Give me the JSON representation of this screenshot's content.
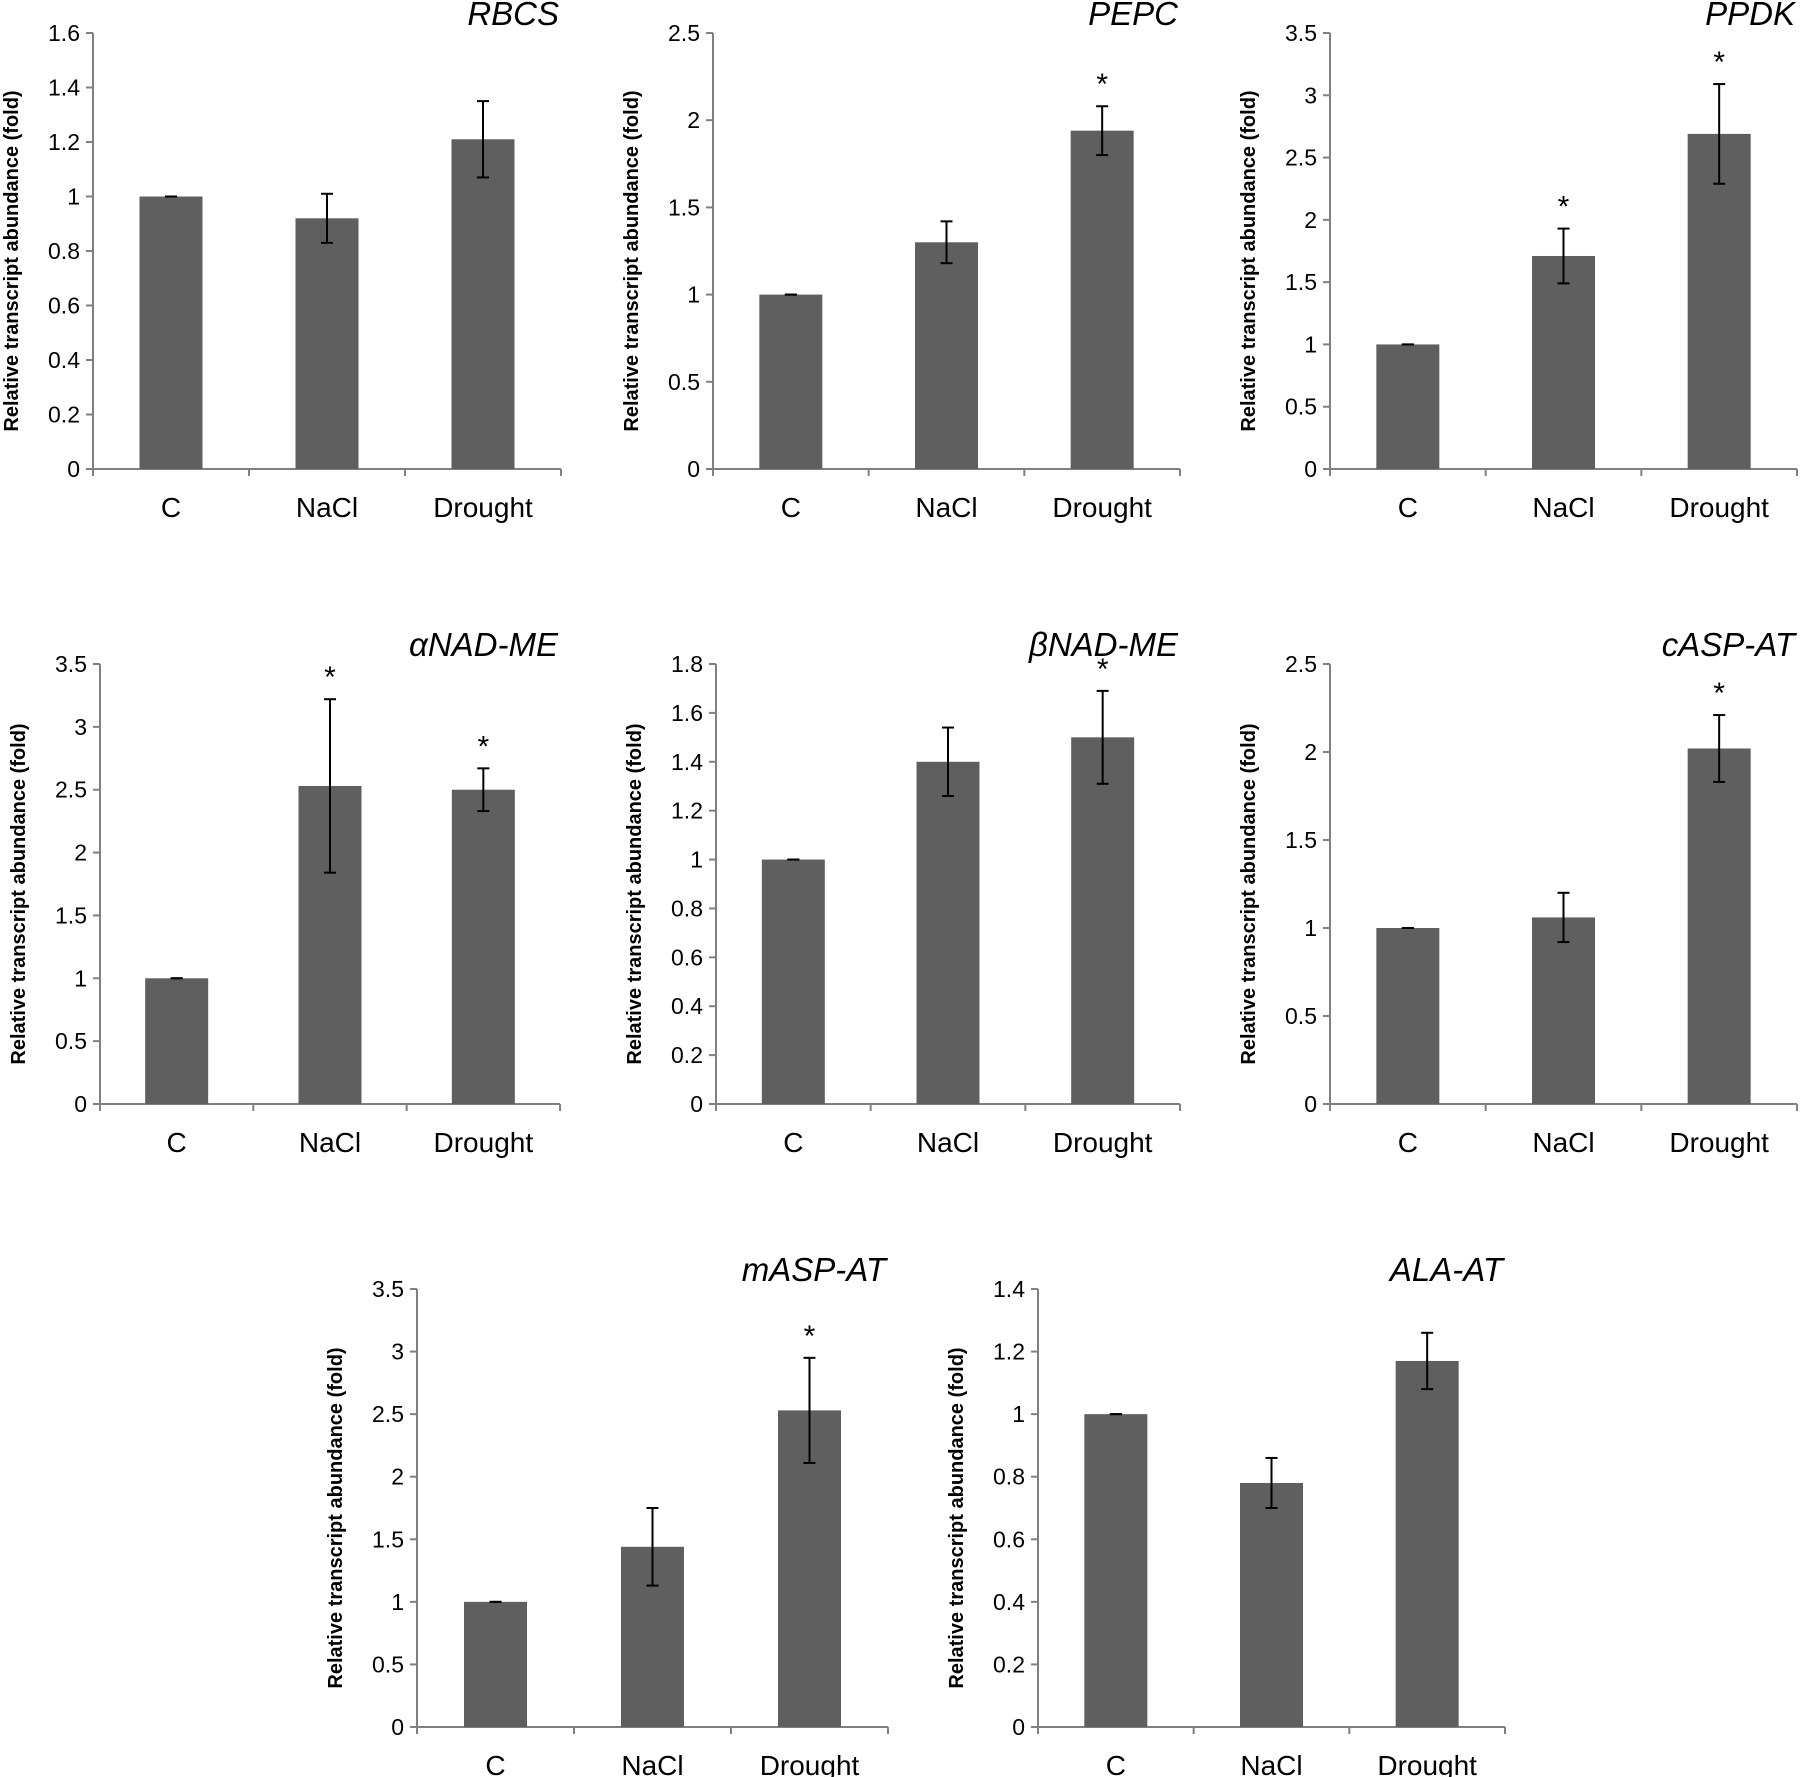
{
  "colors": {
    "bar": "#5f5f5f",
    "axis": "#808080",
    "text": "#000000",
    "errorbar": "#000000"
  },
  "chart_data": [
    {
      "type": "bar",
      "title": "RBCS",
      "ylabel": "Relative transcript abundance (fold)",
      "categories": [
        "C",
        "NaCl",
        "Drought"
      ],
      "ylim": [
        0,
        1.6
      ],
      "yticks": [
        "0",
        "0.2",
        "0.4",
        "0.6",
        "0.8",
        "1",
        "1.2",
        "1.4",
        "1.6"
      ],
      "values": [
        1.0,
        0.92,
        1.21
      ],
      "errors": [
        0.0,
        0.09,
        0.14
      ],
      "significance": [
        "",
        "",
        ""
      ]
    },
    {
      "type": "bar",
      "title": "PEPC",
      "ylabel": "Relative transcript abundance (fold)",
      "categories": [
        "C",
        "NaCl",
        "Drought"
      ],
      "ylim": [
        0,
        2.5
      ],
      "yticks": [
        "0",
        "0.5",
        "1",
        "1.5",
        "2",
        "2.5"
      ],
      "values": [
        1.0,
        1.3,
        1.94
      ],
      "errors": [
        0.0,
        0.12,
        0.14
      ],
      "significance": [
        "",
        "",
        "*"
      ]
    },
    {
      "type": "bar",
      "title": "PPDK",
      "ylabel": "Relative transcript abundance (fold)",
      "categories": [
        "C",
        "NaCl",
        "Drought"
      ],
      "ylim": [
        0,
        3.5
      ],
      "yticks": [
        "0",
        "0.5",
        "1",
        "1.5",
        "2",
        "2.5",
        "3",
        "3.5"
      ],
      "values": [
        1.0,
        1.71,
        2.69
      ],
      "errors": [
        0.0,
        0.22,
        0.4
      ],
      "significance": [
        "",
        "*",
        "*"
      ]
    },
    {
      "type": "bar",
      "title": "αNAD-ME",
      "ylabel": "Relative transcript abundance (fold)",
      "categories": [
        "C",
        "NaCl",
        "Drought"
      ],
      "ylim": [
        0,
        3.5
      ],
      "yticks": [
        "0",
        "0.5",
        "1",
        "1.5",
        "2",
        "2.5",
        "3",
        "3.5"
      ],
      "values": [
        1.0,
        2.53,
        2.5
      ],
      "errors": [
        0.0,
        0.69,
        0.17
      ],
      "significance": [
        "",
        "*",
        "*"
      ]
    },
    {
      "type": "bar",
      "title": "βNAD-ME",
      "ylabel": "Relative transcript abundance (fold)",
      "categories": [
        "C",
        "NaCl",
        "Drought"
      ],
      "ylim": [
        0,
        1.8
      ],
      "yticks": [
        "0",
        "0.2",
        "0.4",
        "0.6",
        "0.8",
        "1",
        "1.2",
        "1.4",
        "1.6",
        "1.8"
      ],
      "values": [
        1.0,
        1.4,
        1.5
      ],
      "errors": [
        0.0,
        0.14,
        0.19
      ],
      "significance": [
        "",
        "",
        "*"
      ]
    },
    {
      "type": "bar",
      "title": "cASP-AT",
      "ylabel": "Relative transcript abundance (fold)",
      "categories": [
        "C",
        "NaCl",
        "Drought"
      ],
      "ylim": [
        0,
        2.5
      ],
      "yticks": [
        "0",
        "0.5",
        "1",
        "1.5",
        "2",
        "2.5"
      ],
      "values": [
        1.0,
        1.06,
        2.02
      ],
      "errors": [
        0.0,
        0.14,
        0.19
      ],
      "significance": [
        "",
        "",
        "*"
      ]
    },
    {
      "type": "bar",
      "title": "mASP-AT",
      "ylabel": "Relative transcript abundance (fold)",
      "categories": [
        "C",
        "NaCl",
        "Drought"
      ],
      "ylim": [
        0,
        3.5
      ],
      "yticks": [
        "0",
        "0.5",
        "1",
        "1.5",
        "2",
        "2.5",
        "3",
        "3.5"
      ],
      "values": [
        1.0,
        1.44,
        2.53
      ],
      "errors": [
        0.0,
        0.31,
        0.42
      ],
      "significance": [
        "",
        "",
        "*"
      ]
    },
    {
      "type": "bar",
      "title": "ALA-AT",
      "ylabel": "Relative transcript abundance (fold)",
      "categories": [
        "C",
        "NaCl",
        "Drought"
      ],
      "ylim": [
        0,
        1.4
      ],
      "yticks": [
        "0",
        "0.2",
        "0.4",
        "0.6",
        "0.8",
        "1",
        "1.2",
        "1.4"
      ],
      "values": [
        1.0,
        0.78,
        1.17
      ],
      "errors": [
        0.0,
        0.08,
        0.09
      ],
      "significance": [
        "",
        "",
        ""
      ]
    }
  ]
}
